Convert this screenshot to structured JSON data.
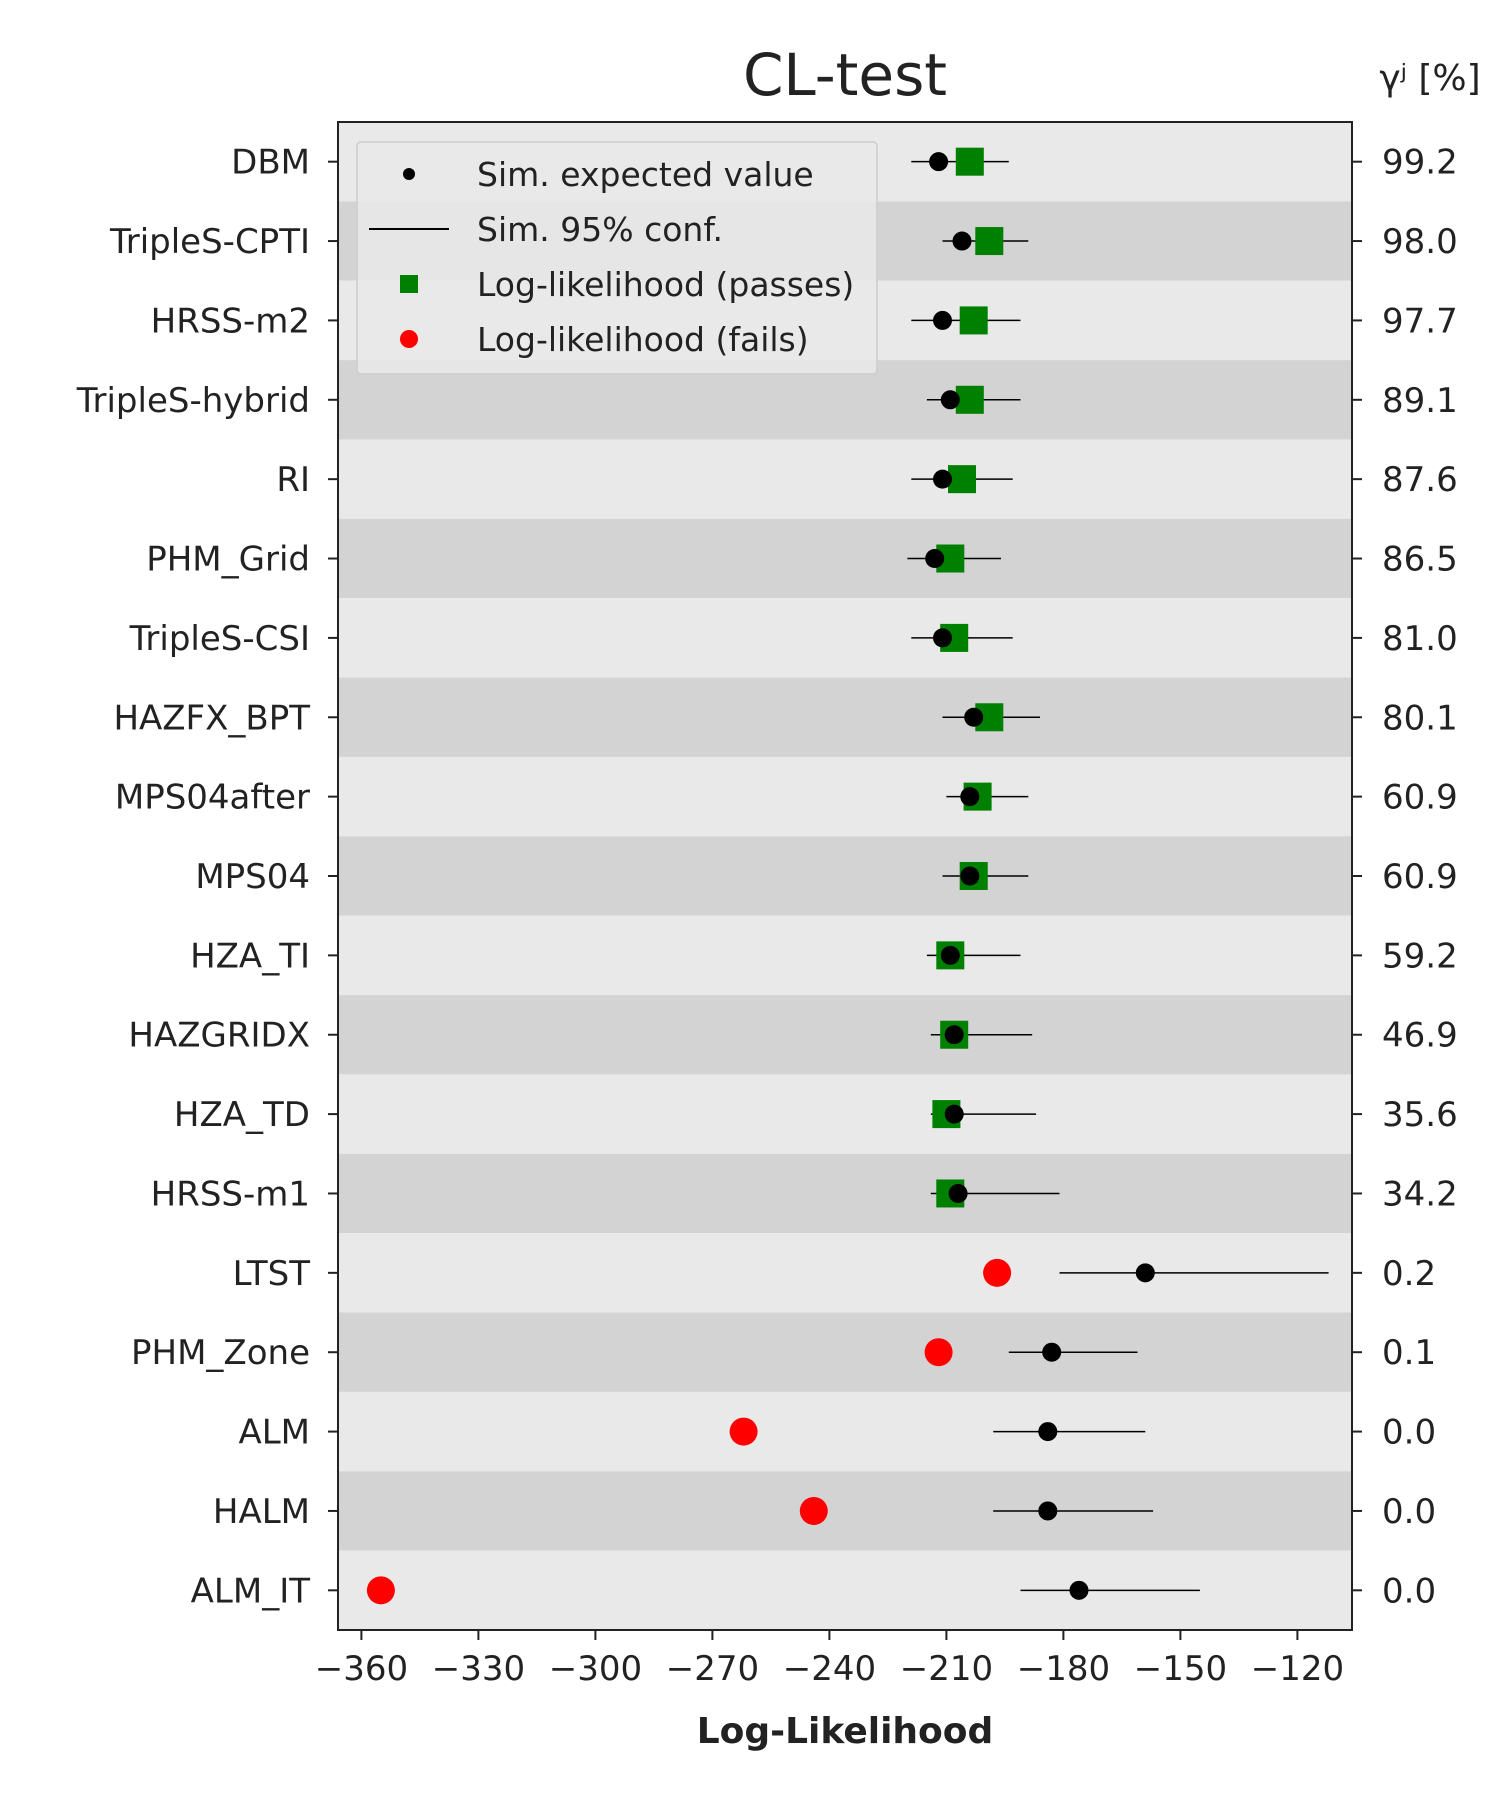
{
  "chart_data": {
    "type": "scatter",
    "title": "CL-test",
    "xlabel": "Log-Likelihood",
    "right_axis_label": "γʲ [%]",
    "xlim": [
      -366,
      -106
    ],
    "xticks": [
      -360,
      -330,
      -300,
      -270,
      -240,
      -210,
      -180,
      -150,
      -120
    ],
    "legend": {
      "placement": "top-left",
      "entries": [
        "Sim. expected value",
        "Sim. 95% conf.",
        "Log-likelihood (passes)",
        "Log-likelihood (fails)"
      ]
    },
    "colors": {
      "pass": "#008000",
      "fail": "#ff0000",
      "expected": "#000000",
      "band_light": "#e9e9e9",
      "band_dark": "#d3d3d3"
    },
    "models": [
      {
        "name": "DBM",
        "gamma": "99.2",
        "expected": -212,
        "conf": [
          -219,
          -194
        ],
        "loglik": -204,
        "status": "pass"
      },
      {
        "name": "TripleS-CPTI",
        "gamma": "98.0",
        "expected": -206,
        "conf": [
          -211,
          -189
        ],
        "loglik": -199,
        "status": "pass"
      },
      {
        "name": "HRSS-m2",
        "gamma": "97.7",
        "expected": -211,
        "conf": [
          -219,
          -191
        ],
        "loglik": -203,
        "status": "pass"
      },
      {
        "name": "TripleS-hybrid",
        "gamma": "89.1",
        "expected": -209,
        "conf": [
          -215,
          -191
        ],
        "loglik": -204,
        "status": "pass"
      },
      {
        "name": "RI",
        "gamma": "87.6",
        "expected": -211,
        "conf": [
          -219,
          -193
        ],
        "loglik": -206,
        "status": "pass"
      },
      {
        "name": "PHM_Grid",
        "gamma": "86.5",
        "expected": -213,
        "conf": [
          -220,
          -196
        ],
        "loglik": -209,
        "status": "pass"
      },
      {
        "name": "TripleS-CSI",
        "gamma": "81.0",
        "expected": -211,
        "conf": [
          -219,
          -193
        ],
        "loglik": -208,
        "status": "pass"
      },
      {
        "name": "HAZFX_BPT",
        "gamma": "80.1",
        "expected": -203,
        "conf": [
          -211,
          -186
        ],
        "loglik": -199,
        "status": "pass"
      },
      {
        "name": "MPS04after",
        "gamma": "60.9",
        "expected": -204,
        "conf": [
          -210,
          -189
        ],
        "loglik": -202,
        "status": "pass"
      },
      {
        "name": "MPS04",
        "gamma": "60.9",
        "expected": -204,
        "conf": [
          -211,
          -189
        ],
        "loglik": -203,
        "status": "pass"
      },
      {
        "name": "HZA_TI",
        "gamma": "59.2",
        "expected": -209,
        "conf": [
          -215,
          -191
        ],
        "loglik": -209,
        "status": "pass"
      },
      {
        "name": "HAZGRIDX",
        "gamma": "46.9",
        "expected": -208,
        "conf": [
          -214,
          -188
        ],
        "loglik": -208,
        "status": "pass"
      },
      {
        "name": "HZA_TD",
        "gamma": "35.6",
        "expected": -208,
        "conf": [
          -214,
          -187
        ],
        "loglik": -210,
        "status": "pass"
      },
      {
        "name": "HRSS-m1",
        "gamma": "34.2",
        "expected": -207,
        "conf": [
          -214,
          -181
        ],
        "loglik": -209,
        "status": "pass"
      },
      {
        "name": "LTST",
        "gamma": "0.2",
        "expected": -159,
        "conf": [
          -181,
          -112
        ],
        "loglik": -197,
        "status": "fail"
      },
      {
        "name": "PHM_Zone",
        "gamma": "0.1",
        "expected": -183,
        "conf": [
          -194,
          -161
        ],
        "loglik": -212,
        "status": "fail"
      },
      {
        "name": "ALM",
        "gamma": "0.0",
        "expected": -184,
        "conf": [
          -198,
          -159
        ],
        "loglik": -262,
        "status": "fail"
      },
      {
        "name": "HALM",
        "gamma": "0.0",
        "expected": -184,
        "conf": [
          -198,
          -157
        ],
        "loglik": -244,
        "status": "fail"
      },
      {
        "name": "ALM_IT",
        "gamma": "0.0",
        "expected": -176,
        "conf": [
          -191,
          -145
        ],
        "loglik": -355,
        "status": "fail"
      }
    ]
  }
}
